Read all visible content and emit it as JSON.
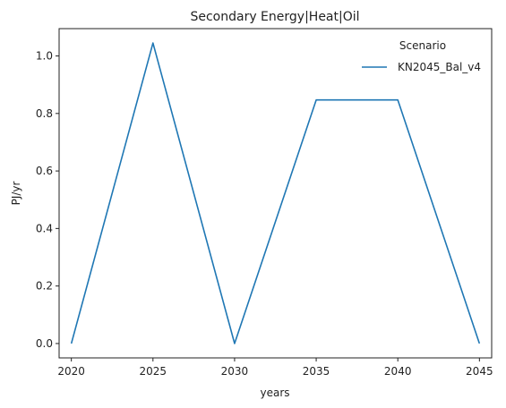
{
  "chart_data": {
    "type": "line",
    "title": "Secondary Energy|Heat|Oil",
    "xlabel": "years",
    "ylabel": "PJ/yr",
    "x": [
      2020,
      2025,
      2030,
      2035,
      2040,
      2045
    ],
    "xticks": [
      "2020",
      "2025",
      "2030",
      "2035",
      "2040",
      "2045"
    ],
    "yticks": [
      "0.0",
      "0.2",
      "0.4",
      "0.6",
      "0.8",
      "1.0"
    ],
    "xlim": [
      2019.25,
      2045.75
    ],
    "ylim": [
      -0.05,
      1.095
    ],
    "grid": false,
    "legend": {
      "title": "Scenario",
      "placement": "top-right"
    },
    "series": [
      {
        "name": "KN2045_Bal_v4",
        "color": "#1f77b4",
        "values": [
          0.0,
          1.045,
          0.0,
          0.847,
          0.847,
          0.0
        ]
      }
    ]
  }
}
